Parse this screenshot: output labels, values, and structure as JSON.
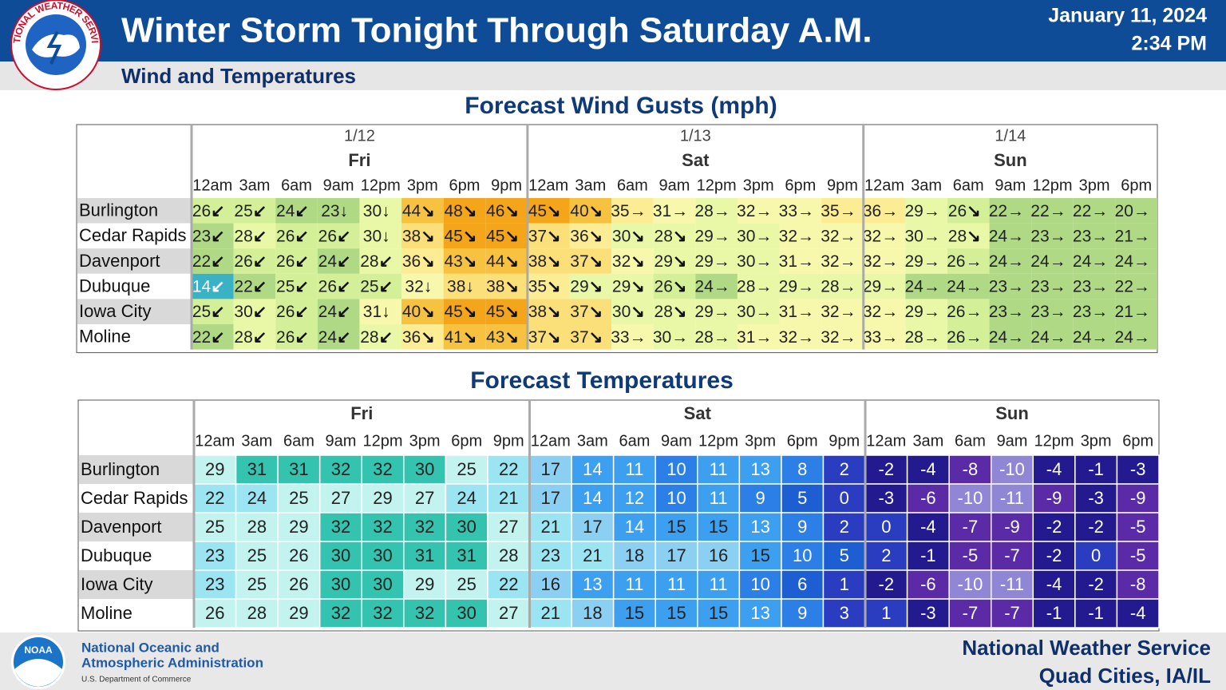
{
  "header": {
    "logo_text": "NATIONAL WEATHER SERVICE",
    "title": "Winter Storm Tonight Through Saturday A.M.",
    "subtitle": "Wind and Temperatures",
    "date": "January 11, 2024",
    "time": "2:34 PM"
  },
  "wind_table": {
    "title": "Forecast Wind Gusts  (mph)",
    "days": [
      {
        "date": "1/12",
        "day": "Fri",
        "hours": [
          "12am",
          "3am",
          "6am",
          "9am",
          "12pm",
          "3pm",
          "6pm",
          "9pm"
        ]
      },
      {
        "date": "1/13",
        "day": "Sat",
        "hours": [
          "12am",
          "3am",
          "6am",
          "9am",
          "12pm",
          "3pm",
          "6pm",
          "9pm"
        ]
      },
      {
        "date": "1/14",
        "day": "Sun",
        "hours": [
          "12am",
          "3am",
          "6am",
          "9am",
          "12pm",
          "3pm",
          "6pm"
        ]
      }
    ],
    "rows": [
      {
        "location": "Burlington",
        "values": [
          26,
          25,
          24,
          23,
          30,
          44,
          48,
          46,
          45,
          40,
          35,
          31,
          28,
          32,
          33,
          35,
          36,
          29,
          26,
          22,
          22,
          22,
          20
        ],
        "directions": [
          "↙",
          "↙",
          "↙",
          "↓",
          "↓",
          "↘",
          "↘",
          "↘",
          "↘",
          "↘",
          "→",
          "→",
          "→",
          "→",
          "→",
          "→",
          "→",
          "→",
          "↘",
          "→",
          "→",
          "→",
          "→"
        ]
      },
      {
        "location": "Cedar Rapids",
        "values": [
          23,
          28,
          26,
          26,
          30,
          38,
          45,
          45,
          37,
          36,
          30,
          28,
          29,
          30,
          32,
          32,
          32,
          30,
          28,
          24,
          23,
          23,
          21
        ],
        "directions": [
          "↙",
          "↙",
          "↙",
          "↙",
          "↓",
          "↘",
          "↘",
          "↘",
          "↘",
          "↘",
          "↘",
          "↘",
          "→",
          "→",
          "→",
          "→",
          "→",
          "→",
          "↘",
          "→",
          "→",
          "→",
          "→"
        ]
      },
      {
        "location": "Davenport",
        "values": [
          22,
          26,
          26,
          24,
          28,
          36,
          43,
          44,
          38,
          37,
          32,
          29,
          29,
          30,
          31,
          32,
          32,
          29,
          26,
          24,
          24,
          24,
          24
        ],
        "directions": [
          "↙",
          "↙",
          "↙",
          "↙",
          "↙",
          "↘",
          "↘",
          "↘",
          "↘",
          "↘",
          "↘",
          "↘",
          "→",
          "→",
          "→",
          "→",
          "→",
          "→",
          "→",
          "→",
          "→",
          "→",
          "→"
        ]
      },
      {
        "location": "Dubuque",
        "values": [
          14,
          22,
          25,
          26,
          25,
          32,
          38,
          38,
          35,
          29,
          29,
          26,
          24,
          28,
          29,
          28,
          29,
          24,
          24,
          23,
          23,
          23,
          22
        ],
        "directions": [
          "↙",
          "↙",
          "↙",
          "↙",
          "↙",
          "↓",
          "↓",
          "↘",
          "↘",
          "↘",
          "↘",
          "↘",
          "→",
          "→",
          "→",
          "→",
          "→",
          "→",
          "→",
          "→",
          "→",
          "→",
          "→"
        ]
      },
      {
        "location": "Iowa City",
        "values": [
          25,
          30,
          26,
          24,
          31,
          40,
          45,
          45,
          38,
          37,
          30,
          28,
          29,
          30,
          31,
          32,
          32,
          29,
          26,
          23,
          23,
          23,
          21
        ],
        "directions": [
          "↙",
          "↙",
          "↙",
          "↙",
          "↓",
          "↘",
          "↘",
          "↘",
          "↘",
          "↘",
          "↘",
          "↘",
          "→",
          "→",
          "→",
          "→",
          "→",
          "→",
          "→",
          "→",
          "→",
          "→",
          "→"
        ]
      },
      {
        "location": "Moline",
        "values": [
          22,
          28,
          26,
          24,
          28,
          36,
          41,
          43,
          37,
          37,
          33,
          30,
          28,
          31,
          32,
          32,
          33,
          28,
          26,
          24,
          24,
          24,
          24
        ],
        "directions": [
          "↙",
          "↙",
          "↙",
          "↙",
          "↙",
          "↘",
          "↘",
          "↘",
          "↘",
          "↘",
          "→",
          "→",
          "→",
          "→",
          "→",
          "→",
          "→",
          "→",
          "→",
          "→",
          "→",
          "→",
          "→"
        ]
      }
    ]
  },
  "temperature_table": {
    "title": "Forecast Temperatures",
    "days": [
      {
        "day": "Fri",
        "hours": [
          "12am",
          "3am",
          "6am",
          "9am",
          "12pm",
          "3pm",
          "6pm",
          "9pm"
        ]
      },
      {
        "day": "Sat",
        "hours": [
          "12am",
          "3am",
          "6am",
          "9am",
          "12pm",
          "3pm",
          "6pm",
          "9pm"
        ]
      },
      {
        "day": "Sun",
        "hours": [
          "12am",
          "3am",
          "6am",
          "9am",
          "12pm",
          "3pm",
          "6pm"
        ]
      }
    ],
    "rows": [
      {
        "location": "Burlington",
        "values": [
          29,
          31,
          31,
          32,
          32,
          30,
          25,
          22,
          17,
          14,
          11,
          10,
          11,
          13,
          8,
          2,
          -2,
          -4,
          -8,
          -10,
          -4,
          -1,
          -3
        ]
      },
      {
        "location": "Cedar Rapids",
        "values": [
          22,
          24,
          25,
          27,
          29,
          27,
          24,
          21,
          17,
          14,
          12,
          10,
          11,
          9,
          5,
          0,
          -3,
          -6,
          -10,
          -11,
          -9,
          -3,
          -9
        ]
      },
      {
        "location": "Davenport",
        "values": [
          25,
          28,
          29,
          32,
          32,
          32,
          30,
          27,
          21,
          17,
          14,
          15,
          15,
          13,
          9,
          2,
          0,
          -4,
          -7,
          -9,
          -2,
          -2,
          -5
        ]
      },
      {
        "location": "Dubuque",
        "values": [
          23,
          25,
          26,
          30,
          30,
          31,
          31,
          28,
          23,
          21,
          18,
          17,
          16,
          15,
          10,
          5,
          2,
          -1,
          -5,
          -7,
          -2,
          0,
          -5
        ]
      },
      {
        "location": "Iowa City",
        "values": [
          23,
          25,
          26,
          30,
          30,
          29,
          25,
          22,
          16,
          13,
          11,
          11,
          11,
          10,
          6,
          1,
          -2,
          -6,
          -10,
          -11,
          -4,
          -2,
          -8
        ]
      },
      {
        "location": "Moline",
        "values": [
          26,
          28,
          29,
          32,
          32,
          32,
          30,
          27,
          21,
          18,
          15,
          15,
          15,
          13,
          9,
          3,
          1,
          -3,
          -7,
          -7,
          -1,
          -1,
          -4
        ]
      }
    ]
  },
  "footer": {
    "noaa_logo": "NOAA",
    "agency_line1": "National Oceanic and",
    "agency_line2": "Atmospheric Administration",
    "department": "U.S. Department of Commerce",
    "office_line1": "National Weather Service",
    "office_line2": "Quad Cities, IA/IL"
  }
}
